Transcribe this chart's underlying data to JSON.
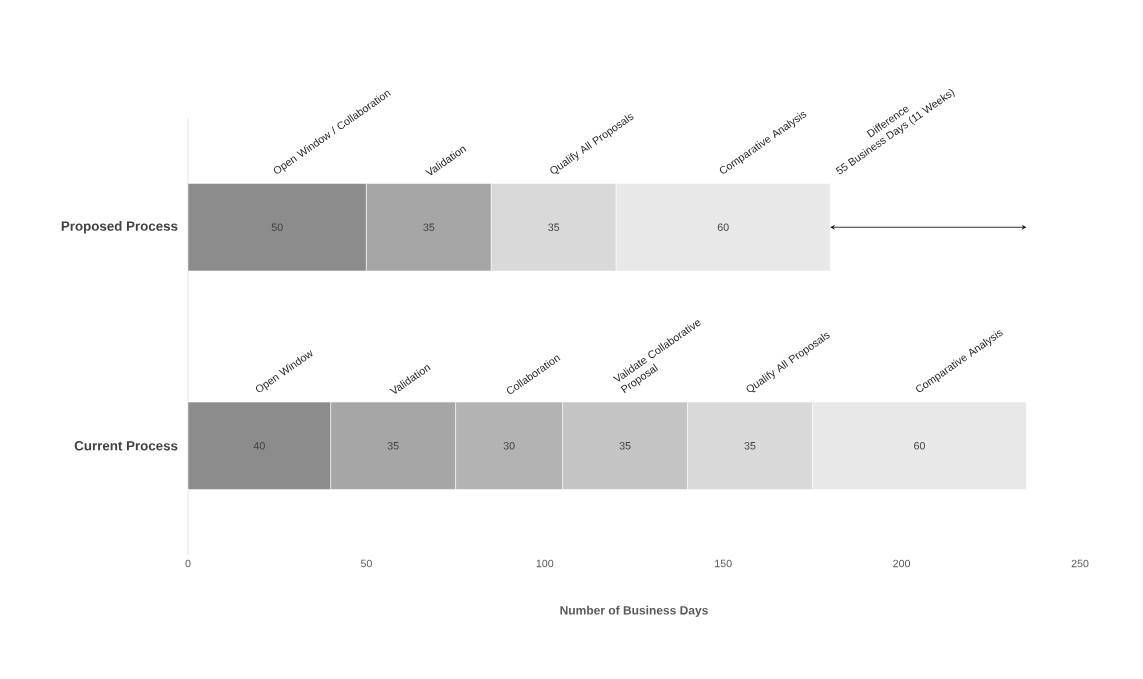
{
  "chart_data": {
    "type": "bar",
    "orientation": "horizontal",
    "stacked": true,
    "data_labels": true,
    "categories": [
      "Proposed Process",
      "Current Process"
    ],
    "series": [
      {
        "name": "Open Window / Collaboration",
        "values": [
          50,
          null
        ],
        "color": "#8c8c8c"
      },
      {
        "name": "Validation",
        "values": [
          35,
          null
        ],
        "color": "#a6a6a6"
      },
      {
        "name": "Qualify All Proposals",
        "values": [
          35,
          null
        ],
        "color": "#d9d9d9"
      },
      {
        "name": "Comparative Analysis",
        "values": [
          60,
          null
        ],
        "color": "#e8e8e8"
      },
      {
        "name": "Open Window",
        "values": [
          null,
          40
        ],
        "color": "#8c8c8c"
      },
      {
        "name": "Validation",
        "values": [
          null,
          35
        ],
        "color": "#a6a6a6"
      },
      {
        "name": "Collaboration",
        "values": [
          null,
          30
        ],
        "color": "#b3b3b3"
      },
      {
        "name": "Validate Collaborative Proposal",
        "values": [
          null,
          35
        ],
        "color": "#c4c4c4"
      },
      {
        "name": "Qualify All Proposals",
        "values": [
          null,
          35
        ],
        "color": "#d9d9d9"
      },
      {
        "name": "Comparative Analysis",
        "values": [
          null,
          60
        ],
        "color": "#e8e8e8"
      }
    ],
    "xlim": [
      0,
      250
    ],
    "xticks": [
      0,
      50,
      100,
      150,
      200,
      250
    ],
    "xlabel": "Number of Business Days",
    "annotations": [
      "Difference",
      "55 Business Days (11 Weeks)"
    ]
  }
}
